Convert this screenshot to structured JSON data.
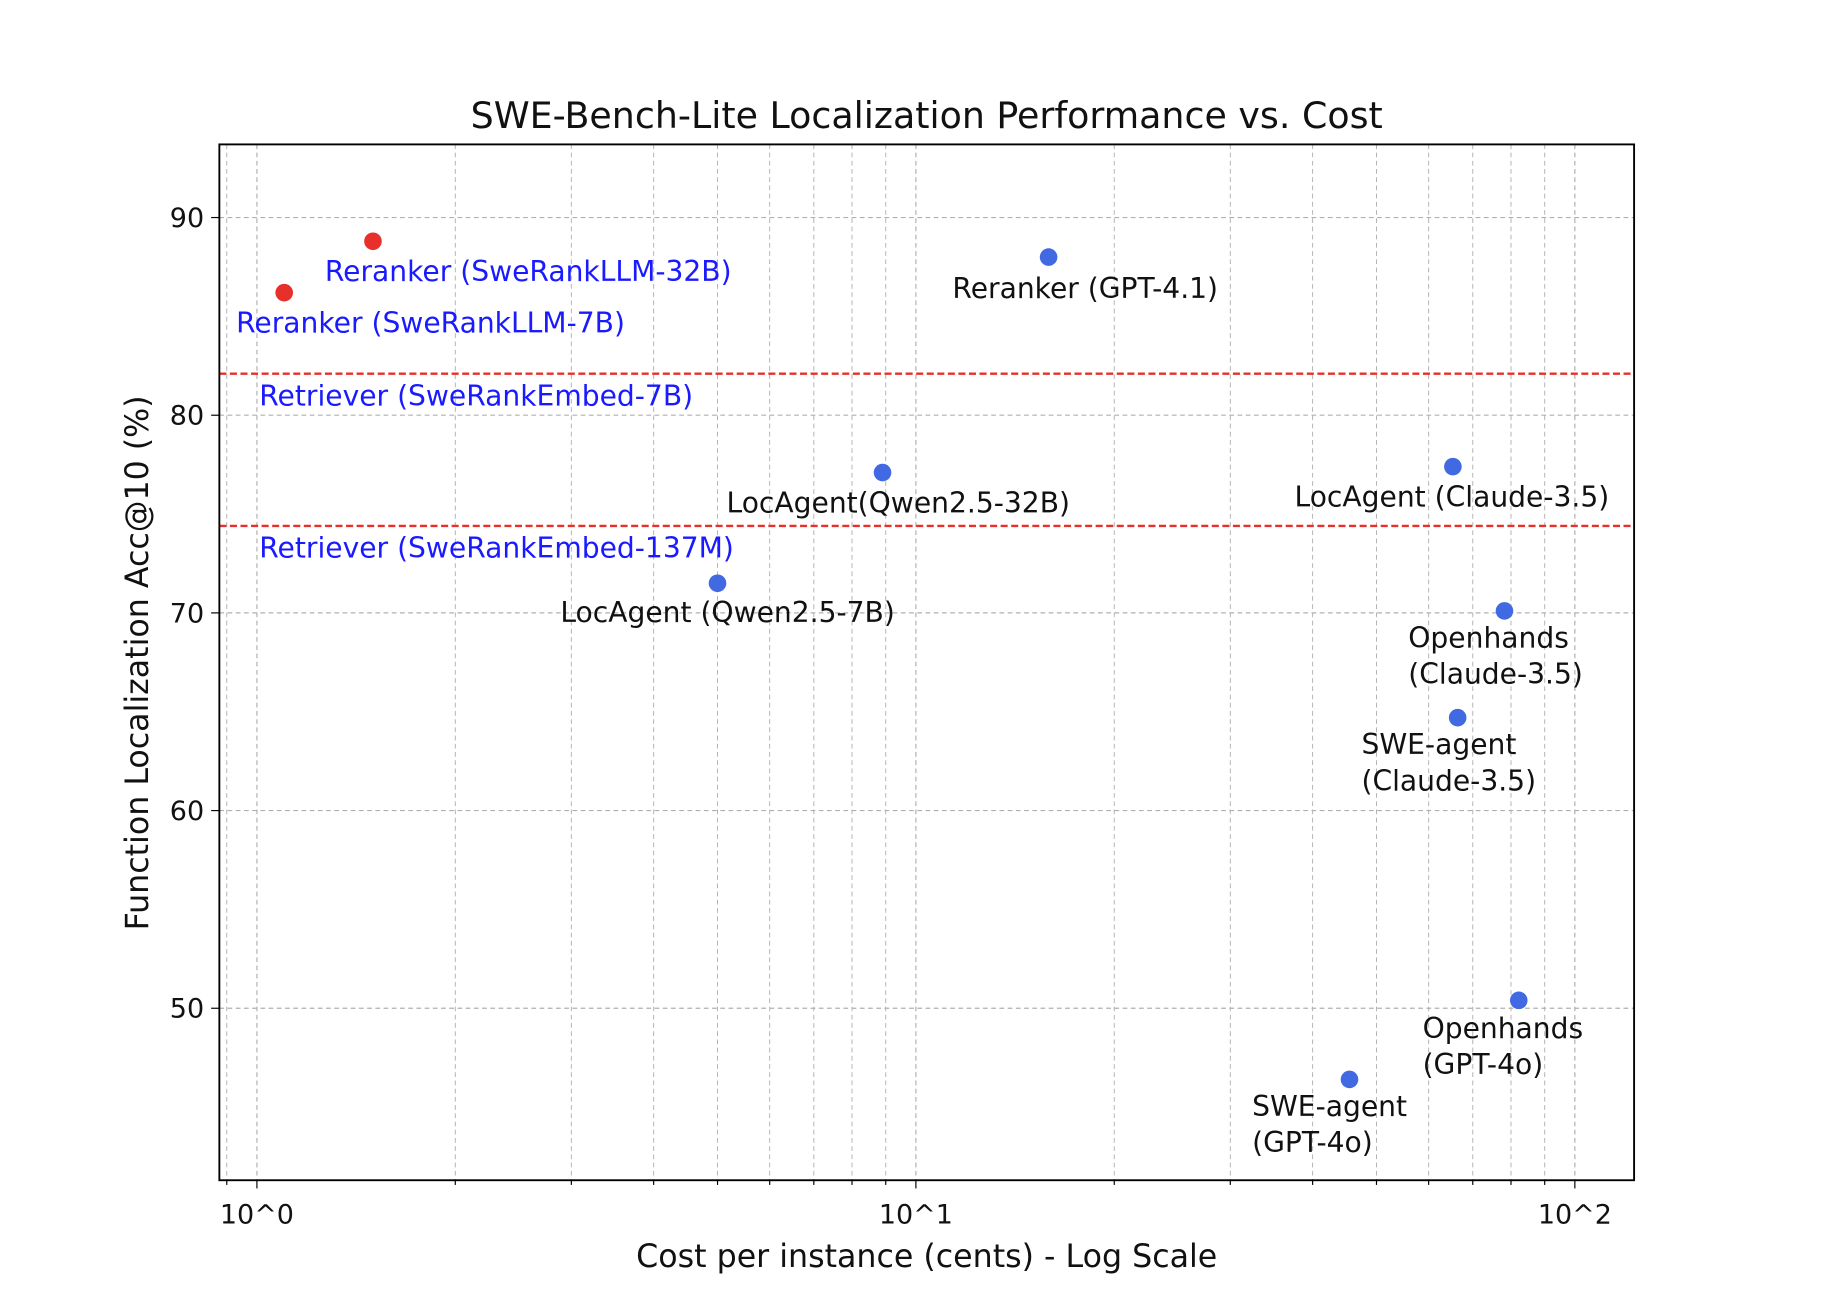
{
  "chart_data": {
    "type": "scatter",
    "title": "SWE-Bench-Lite Localization Performance vs. Cost",
    "xlabel": "Cost per instance (cents) - Log Scale",
    "ylabel": "Function Localization Acc@10 (%)",
    "xscale": "log",
    "xlim": [
      0.877,
      123
    ],
    "ylim": [
      41.3,
      93.7
    ],
    "xticks": [
      {
        "value": 1,
        "label": "10^0"
      },
      {
        "value": 10,
        "label": "10^1"
      },
      {
        "value": 100,
        "label": "10^2"
      }
    ],
    "yticks": [
      50,
      60,
      70,
      80,
      90
    ],
    "grid": true,
    "points": [
      {
        "label": "Reranker (SweRankLLM-32B)",
        "x": 1.5,
        "y": 88.8,
        "color": "#e8302a",
        "label_color": "#1a1aff"
      },
      {
        "label": "Reranker (SweRankLLM-7B)",
        "x": 1.1,
        "y": 86.2,
        "color": "#e8302a",
        "label_color": "#1a1aff"
      },
      {
        "label": "Reranker (GPT-4.1)",
        "x": 15.9,
        "y": 88.0,
        "color": "#4169e1",
        "label_color": "#111111"
      },
      {
        "label": "LocAgent(Qwen2.5-32B)",
        "x": 8.9,
        "y": 77.1,
        "color": "#4169e1",
        "label_color": "#111111"
      },
      {
        "label": "LocAgent (Claude-3.5)",
        "x": 65.3,
        "y": 77.4,
        "color": "#4169e1",
        "label_color": "#111111"
      },
      {
        "label": "LocAgent (Qwen2.5-7B)",
        "x": 5.0,
        "y": 71.5,
        "color": "#4169e1",
        "label_color": "#111111"
      },
      {
        "label": "Openhands\n(Claude-3.5)",
        "x": 78.2,
        "y": 70.1,
        "color": "#4169e1",
        "label_color": "#111111"
      },
      {
        "label": "SWE-agent\n(Claude-3.5)",
        "x": 66.4,
        "y": 64.7,
        "color": "#4169e1",
        "label_color": "#111111"
      },
      {
        "label": "Openhands\n(GPT-4o)",
        "x": 82.2,
        "y": 50.4,
        "color": "#4169e1",
        "label_color": "#111111"
      },
      {
        "label": "SWE-agent\n(GPT-4o)",
        "x": 45.5,
        "y": 46.4,
        "color": "#4169e1",
        "label_color": "#111111"
      }
    ],
    "hlines": [
      {
        "label": "Retriever (SweRankEmbed-7B)",
        "y": 82.1,
        "color": "#e8302a",
        "style": "dashed",
        "label_color": "#1a1aff"
      },
      {
        "label": "Retriever (SweRankEmbed-137M)",
        "y": 74.4,
        "color": "#e8302a",
        "style": "dashed",
        "label_color": "#1a1aff"
      }
    ]
  }
}
